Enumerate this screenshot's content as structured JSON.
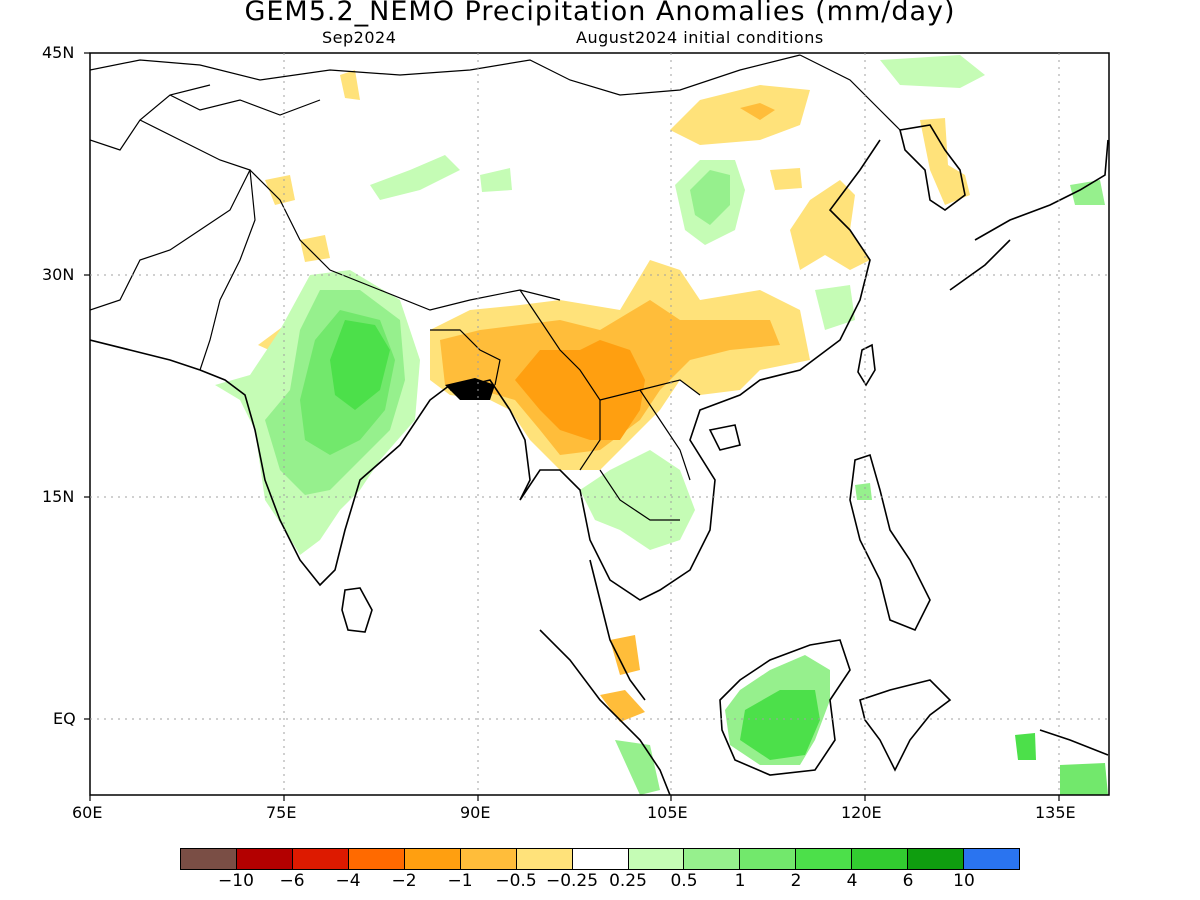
{
  "header": {
    "title": "GEM5.2_NEMO Precipitation Anomalies (mm/day)",
    "valid_month": "Sep2024",
    "init": "August2024 initial conditions"
  },
  "axes": {
    "lat_labels": [
      "45N",
      "30N",
      "15N",
      "EQ"
    ],
    "lon_labels": [
      "60E",
      "75E",
      "90E",
      "105E",
      "120E",
      "135E"
    ]
  },
  "colorbar": {
    "colors": [
      "#7a4e45",
      "#b30000",
      "#dd1a00",
      "#ff6a00",
      "#ff9f10",
      "#ffbd3a",
      "#ffe27a",
      "#ffffff",
      "#c5fcb5",
      "#96f08d",
      "#72e86c",
      "#4ce04a",
      "#32cc30",
      "#0f9e0f",
      "#2a74f0"
    ],
    "labels": [
      "−10",
      "−6",
      "−4",
      "−2",
      "−1",
      "−0.5",
      "−0.25",
      "0.25",
      "0.5",
      "1",
      "2",
      "4",
      "6",
      "10"
    ]
  },
  "palette": {
    "dry1": "#ffe27a",
    "dry2": "#ffbd3a",
    "dry3": "#ff9f10",
    "wet1": "#c5fcb5",
    "wet2": "#96f08d",
    "wet3": "#72e86c",
    "wet4": "#4ce04a",
    "wet5": "#32cc30"
  }
}
